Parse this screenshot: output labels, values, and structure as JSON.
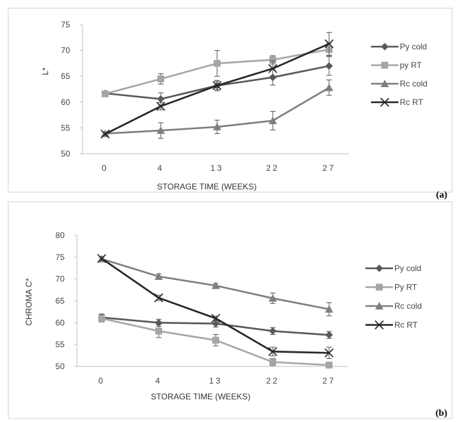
{
  "chart_data": [
    {
      "type": "line",
      "panel_label": "(a)",
      "categories": [
        "0",
        "4",
        "13",
        "22",
        "27"
      ],
      "xlabel": "STORAGE TIME (WEEKS)",
      "ylabel": "L*",
      "ylim": [
        50,
        75
      ],
      "yticks": [
        50,
        55,
        60,
        65,
        70,
        75
      ],
      "legend_position": "right",
      "series": [
        {
          "name": "Py cold",
          "marker": "diamond",
          "color": "#595959",
          "values": [
            61.7,
            60.6,
            63.2,
            64.8,
            67.0
          ],
          "errors": [
            0.4,
            1.2,
            0.8,
            1.5,
            1.8
          ]
        },
        {
          "name": "py RT",
          "marker": "square",
          "color": "#a6a6a6",
          "values": [
            61.6,
            64.5,
            67.5,
            68.2,
            70.2
          ],
          "errors": [
            0.4,
            1.0,
            2.5,
            0.8,
            1.2
          ]
        },
        {
          "name": "Rc cold",
          "marker": "triangle",
          "color": "#7f7f7f",
          "values": [
            53.9,
            54.5,
            55.2,
            56.4,
            62.8
          ],
          "errors": [
            0.3,
            1.5,
            1.3,
            1.8,
            1.5
          ]
        },
        {
          "name": "Rc RT",
          "marker": "x",
          "color": "#262626",
          "values": [
            53.8,
            59.2,
            63.2,
            66.5,
            71.3
          ],
          "errors": [
            0.3,
            0.7,
            1.0,
            1.5,
            2.2
          ]
        }
      ]
    },
    {
      "type": "line",
      "panel_label": "(b)",
      "categories": [
        "0",
        "4",
        "13",
        "22",
        "27"
      ],
      "xlabel": "STORAGE TIME (WEEKS)",
      "ylabel": "CHROMA  C*",
      "ylim": [
        50,
        80
      ],
      "yticks": [
        50,
        55,
        60,
        65,
        70,
        75,
        80
      ],
      "legend_position": "right",
      "series": [
        {
          "name": "Py cold",
          "marker": "diamond",
          "color": "#595959",
          "values": [
            61.2,
            60.0,
            59.8,
            58.1,
            57.2
          ],
          "errors": [
            0.8,
            0.8,
            0.8,
            0.8,
            0.8
          ]
        },
        {
          "name": "Py RT",
          "marker": "square",
          "color": "#a6a6a6",
          "values": [
            61.0,
            58.1,
            56.0,
            51.0,
            50.3
          ],
          "errors": [
            0.8,
            1.5,
            1.3,
            0.8,
            0.5
          ]
        },
        {
          "name": "Rc cold",
          "marker": "triangle",
          "color": "#7f7f7f",
          "values": [
            74.6,
            70.6,
            68.5,
            65.6,
            63.1
          ],
          "errors": [
            0.4,
            0.6,
            0.5,
            1.2,
            1.5
          ]
        },
        {
          "name": "Rc RT",
          "marker": "x",
          "color": "#262626",
          "values": [
            74.7,
            65.7,
            61.0,
            53.4,
            53.1
          ],
          "errors": [
            0.4,
            0.6,
            0.5,
            1.0,
            1.3
          ]
        }
      ]
    }
  ]
}
